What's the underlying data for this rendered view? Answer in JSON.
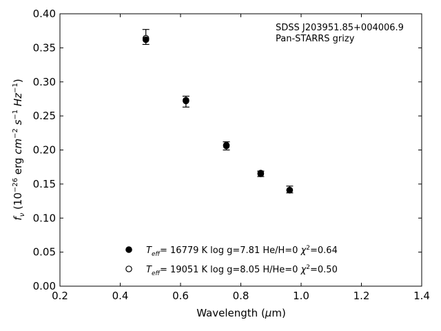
{
  "chart_data": {
    "type": "scatter",
    "annotation": [
      "SDSS J203951.85+004006.9",
      "Pan-STARRS grizy"
    ],
    "xlabel": "Wavelength (μm)",
    "ylabel": "f_ν (10^-26 erg cm^-2 s^-1 Hz^-1)",
    "xlim": [
      0.2,
      1.4
    ],
    "ylim": [
      0.0,
      0.4
    ],
    "xticks": [
      "0.2",
      "0.4",
      "0.6",
      "0.8",
      "1.0",
      "1.2",
      "1.4"
    ],
    "yticks": [
      "0.00",
      "0.05",
      "0.10",
      "0.15",
      "0.20",
      "0.25",
      "0.30",
      "0.35",
      "0.40"
    ],
    "grid": false,
    "observed": {
      "x": [
        0.485,
        0.618,
        0.752,
        0.866,
        0.962
      ],
      "y": [
        0.366,
        0.271,
        0.206,
        0.165,
        0.142
      ],
      "err": [
        0.011,
        0.008,
        0.006,
        0.004,
        0.005
      ]
    },
    "series": [
      {
        "name": "T_eff= 16779 K  log g=7.81  He/H=0  χ²=0.64",
        "marker": "filled",
        "x": [
          0.485,
          0.618,
          0.752,
          0.866,
          0.962
        ],
        "y": [
          0.362,
          0.273,
          0.207,
          0.166,
          0.141
        ]
      },
      {
        "name": "T_eff= 19051 K  log g=8.05  H/He=0  χ²=0.50",
        "marker": "open",
        "x": [
          0.485,
          0.618,
          0.752,
          0.866,
          0.962
        ],
        "y": [
          0.364,
          0.272,
          0.206,
          0.165,
          0.141
        ]
      }
    ],
    "legend": {
      "placement": "lower-center",
      "entries": [
        {
          "prefix": "T",
          "sub": "eff",
          "rest": "= 16779 K  log g=7.81  He/H=0  ",
          "chi": "χ",
          "sup": "2",
          "tail": "=0.64",
          "marker": "filled"
        },
        {
          "prefix": "T",
          "sub": "eff",
          "rest": "= 19051 K  log g=8.05  H/He=0  ",
          "chi": "χ",
          "sup": "2",
          "tail": "=0.50",
          "marker": "open"
        }
      ]
    },
    "colors": {
      "marker": "#000000",
      "axes": "#000000",
      "background": "#ffffff"
    }
  }
}
